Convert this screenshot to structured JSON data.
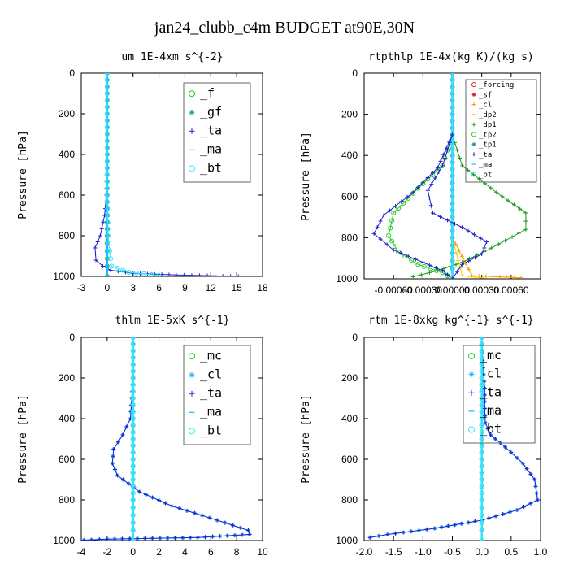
{
  "title": "jan24_clubb_c4m  BUDGET at90E,30N",
  "colors": {
    "green": "#22cc22",
    "dkgreen": "#1a9a1a",
    "blue": "#2222cc",
    "cyan": "#22b5ff",
    "ltcyan": "#33e5ff",
    "red": "#dd2222",
    "orange": "#ff9a00",
    "yellow": "#eecc00",
    "teal": "#229999"
  },
  "chart_data": [
    {
      "type": "line",
      "title": "um  1E-4xm s^{-2}",
      "ylabel": "Pressure [hPa]",
      "xlim": [
        -3,
        18
      ],
      "ylim": [
        1000,
        0
      ],
      "xticks": [
        -3,
        0,
        3,
        6,
        9,
        12,
        15,
        18
      ],
      "xtick_labels": [
        "-3",
        "0",
        "3",
        "6",
        "9",
        "12",
        "15",
        "18"
      ],
      "yticks": [
        0,
        200,
        400,
        600,
        800,
        1000
      ],
      "ytick_labels": [
        "0",
        "200",
        "400",
        "600",
        "800",
        "1000"
      ],
      "legend_style": "big",
      "legend_position": "top-right",
      "series": [
        {
          "name": "_f",
          "color": "green",
          "marker": "circle",
          "x": [
            0,
            0,
            0,
            0,
            0,
            0,
            0
          ],
          "y": [
            0,
            200,
            400,
            600,
            800,
            950,
            1000
          ]
        },
        {
          "name": "_gf",
          "color": "teal",
          "marker": "star",
          "x": [
            0,
            0,
            0,
            0,
            0,
            0,
            0
          ],
          "y": [
            0,
            200,
            400,
            600,
            800,
            950,
            1000
          ]
        },
        {
          "name": "_ta",
          "color": "blue",
          "marker": "plus",
          "x": [
            0,
            0,
            0,
            -0.1,
            -0.3,
            -0.8,
            -1.4,
            -1.3,
            -0.5,
            0.4,
            3.0,
            8.0,
            15.2
          ],
          "y": [
            0,
            200,
            400,
            600,
            700,
            800,
            860,
            920,
            950,
            970,
            985,
            993,
            1000
          ]
        },
        {
          "name": "_ma",
          "color": "cyan",
          "marker": "dash",
          "x": [
            0,
            0,
            0,
            0,
            0,
            0,
            0
          ],
          "y": [
            0,
            200,
            400,
            600,
            800,
            950,
            1000
          ]
        },
        {
          "name": "_bt",
          "color": "ltcyan",
          "marker": "circle",
          "x": [
            0,
            0,
            0,
            0,
            0.1,
            0.5,
            2.5,
            6.0
          ],
          "y": [
            0,
            200,
            400,
            600,
            800,
            950,
            980,
            995
          ]
        }
      ]
    },
    {
      "type": "line",
      "title": "rtpthlp  1E-4x(kg K)/(kg s)",
      "ylabel": "Pressure [hPa]",
      "xlim": [
        -0.0009,
        0.0009
      ],
      "ylim": [
        1000,
        0
      ],
      "xticks": [
        -0.0006,
        -0.0003,
        0,
        0.0003,
        0.0006
      ],
      "xtick_labels": [
        "-0.00060",
        "-0.00030",
        "0.00000",
        "0.00030",
        "0.00060"
      ],
      "yticks": [
        0,
        200,
        400,
        600,
        800,
        1000
      ],
      "ytick_labels": [
        "0",
        "200",
        "400",
        "600",
        "800",
        "1000"
      ],
      "legend_style": "small",
      "legend_position": "top-right",
      "series": [
        {
          "name": "_forcing",
          "color": "red",
          "marker": "circle",
          "x": [
            0,
            0,
            0,
            0,
            0,
            0,
            0
          ],
          "y": [
            0,
            200,
            400,
            600,
            800,
            950,
            1000
          ]
        },
        {
          "name": "_sf",
          "color": "red",
          "marker": "star",
          "x": [
            0,
            0,
            0,
            0,
            0,
            0,
            0
          ],
          "y": [
            0,
            200,
            400,
            600,
            800,
            950,
            1000
          ]
        },
        {
          "name": "_cl",
          "color": "orange",
          "marker": "plus",
          "x": [
            0,
            0,
            0,
            0,
            0,
            0.0002,
            0.0007
          ],
          "y": [
            0,
            200,
            400,
            600,
            800,
            985,
            995
          ]
        },
        {
          "name": "_dp2",
          "color": "yellow",
          "marker": "dash",
          "x": [
            0,
            0,
            0,
            0,
            0,
            0.0001,
            0.0003
          ],
          "y": [
            0,
            200,
            400,
            600,
            800,
            985,
            995
          ]
        },
        {
          "name": "_dp1",
          "color": "dkgreen",
          "marker": "plus",
          "x": [
            0,
            0.0001,
            0.00045,
            0.00075,
            0.00075,
            0.0004,
            0.0001,
            -0.00015,
            -0.0004
          ],
          "y": [
            300,
            450,
            580,
            680,
            760,
            850,
            920,
            960,
            990
          ]
        },
        {
          "name": "_tp2",
          "color": "green",
          "marker": "circle",
          "x": [
            0,
            -0.0001,
            -0.00035,
            -0.0006,
            -0.00065,
            -0.00055,
            -0.00035,
            -0.0001,
            0
          ],
          "y": [
            300,
            450,
            560,
            680,
            790,
            870,
            930,
            970,
            1000
          ]
        },
        {
          "name": "_tp1",
          "color": "teal",
          "marker": "star",
          "x": [
            0,
            0,
            0,
            0,
            0,
            0,
            0
          ],
          "y": [
            0,
            200,
            400,
            600,
            800,
            950,
            1000
          ]
        },
        {
          "name": "_ta",
          "color": "blue",
          "marker": "plus",
          "x": [
            0,
            -0.00015,
            -0.0004,
            -0.0007,
            -0.0008,
            -0.0006,
            -0.0003,
            -0.0001,
            0
          ],
          "y": [
            300,
            460,
            580,
            690,
            780,
            860,
            920,
            960,
            1000
          ]
        },
        {
          "name": "_ma",
          "color": "cyan",
          "marker": "dash",
          "x": [
            0,
            0,
            0,
            0,
            0,
            0,
            0
          ],
          "y": [
            0,
            200,
            400,
            600,
            800,
            950,
            1000
          ]
        },
        {
          "name": "_bt",
          "color": "ltcyan",
          "marker": "circle",
          "x": [
            0,
            0,
            0,
            0,
            0,
            0,
            0
          ],
          "y": [
            0,
            200,
            400,
            600,
            800,
            950,
            1000
          ]
        },
        {
          "name": "",
          "color": "blue",
          "marker": "plus",
          "x": [
            0,
            -0.0001,
            -0.00025,
            -0.0002,
            0.0001,
            0.00035,
            0.0003,
            0.0001,
            0
          ],
          "y": [
            300,
            450,
            570,
            680,
            750,
            820,
            880,
            930,
            1000
          ]
        }
      ]
    },
    {
      "type": "line",
      "title": "thlm  1E-5xK s^{-1}",
      "ylabel": "Pressure [hPa]",
      "xlim": [
        -4,
        10
      ],
      "ylim": [
        1000,
        0
      ],
      "xticks": [
        -4,
        -2,
        0,
        2,
        4,
        6,
        8,
        10
      ],
      "xtick_labels": [
        "-4",
        "-2",
        "0",
        "2",
        "4",
        "6",
        "8",
        "10"
      ],
      "yticks": [
        0,
        200,
        400,
        600,
        800,
        1000
      ],
      "ytick_labels": [
        "0",
        "200",
        "400",
        "600",
        "800",
        "1000"
      ],
      "legend_style": "big",
      "legend_position": "top-right",
      "series": [
        {
          "name": "_mc",
          "color": "green",
          "marker": "circle",
          "x": [
            0,
            0,
            0,
            0,
            0,
            0,
            0
          ],
          "y": [
            0,
            200,
            400,
            600,
            800,
            950,
            1000
          ]
        },
        {
          "name": "_cl",
          "color": "cyan",
          "marker": "star",
          "x": [
            0,
            0,
            -0.2,
            -0.8,
            -1.5,
            -1.6,
            -1.2,
            0.5,
            3.0,
            6.5,
            8.9,
            9.0,
            5.0,
            -2.0,
            -3.8
          ],
          "y": [
            0,
            200,
            400,
            480,
            550,
            620,
            680,
            760,
            830,
            900,
            950,
            970,
            985,
            993,
            998
          ]
        },
        {
          "name": "_ta",
          "color": "blue",
          "marker": "plus",
          "x": [
            0,
            0,
            -0.2,
            -0.8,
            -1.5,
            -1.6,
            -1.2,
            0.5,
            3.0,
            6.5,
            8.9,
            9.0,
            5.0,
            -2.0,
            -3.8
          ],
          "y": [
            0,
            200,
            400,
            480,
            550,
            620,
            680,
            760,
            830,
            900,
            950,
            970,
            985,
            993,
            998
          ]
        },
        {
          "name": "_ma",
          "color": "cyan",
          "marker": "dash",
          "x": [
            0,
            0,
            0,
            0,
            0,
            0,
            0
          ],
          "y": [
            0,
            200,
            400,
            600,
            800,
            950,
            1000
          ]
        },
        {
          "name": "_bt",
          "color": "ltcyan",
          "marker": "circle",
          "x": [
            0,
            0,
            0,
            0,
            0,
            0,
            0
          ],
          "y": [
            0,
            200,
            400,
            600,
            800,
            950,
            1000
          ]
        }
      ]
    },
    {
      "type": "line",
      "title": "rtm  1E-8xkg kg^{-1} s^{-1}",
      "ylabel": "Pressure [hPa]",
      "xlim": [
        -2.0,
        1.0
      ],
      "ylim": [
        1000,
        0
      ],
      "xticks": [
        -2.0,
        -1.5,
        -1.0,
        -0.5,
        0.0,
        0.5,
        1.0
      ],
      "xtick_labels": [
        "-2.0",
        "-1.5",
        "-1.0",
        "-0.5",
        "0.0",
        "0.5",
        "1.0"
      ],
      "yticks": [
        0,
        200,
        400,
        600,
        800,
        1000
      ],
      "ytick_labels": [
        "0",
        "200",
        "400",
        "600",
        "800",
        "1000"
      ],
      "legend_style": "big",
      "legend_position": "top-right",
      "series": [
        {
          "name": "_mc",
          "color": "green",
          "marker": "circle",
          "x": [
            0,
            0,
            0,
            0,
            0,
            0,
            0
          ],
          "y": [
            0,
            200,
            400,
            600,
            800,
            950,
            1000
          ]
        },
        {
          "name": "_cl",
          "color": "cyan",
          "marker": "star",
          "x": [
            0,
            0.02,
            0.05,
            0.05,
            0.06,
            0.15,
            0.4,
            0.7,
            0.9,
            0.95,
            0.6,
            0.0,
            -0.8,
            -1.6,
            -1.9
          ],
          "y": [
            0,
            150,
            250,
            350,
            420,
            480,
            540,
            620,
            700,
            800,
            850,
            900,
            940,
            970,
            985
          ]
        },
        {
          "name": "_ta",
          "color": "blue",
          "marker": "plus",
          "x": [
            0,
            0.02,
            0.05,
            0.05,
            0.06,
            0.15,
            0.4,
            0.7,
            0.9,
            0.95,
            0.6,
            0.0,
            -0.8,
            -1.6,
            -1.9
          ],
          "y": [
            0,
            150,
            250,
            350,
            420,
            480,
            540,
            620,
            700,
            800,
            850,
            900,
            940,
            970,
            985
          ]
        },
        {
          "name": "_ma",
          "color": "cyan",
          "marker": "dash",
          "x": [
            0,
            0,
            0,
            0,
            0,
            0,
            0
          ],
          "y": [
            0,
            200,
            400,
            600,
            800,
            950,
            1000
          ]
        },
        {
          "name": "_bt",
          "color": "ltcyan",
          "marker": "circle",
          "x": [
            0,
            0,
            0,
            0,
            0,
            0,
            0
          ],
          "y": [
            0,
            200,
            400,
            600,
            800,
            950,
            1000
          ]
        }
      ]
    }
  ]
}
